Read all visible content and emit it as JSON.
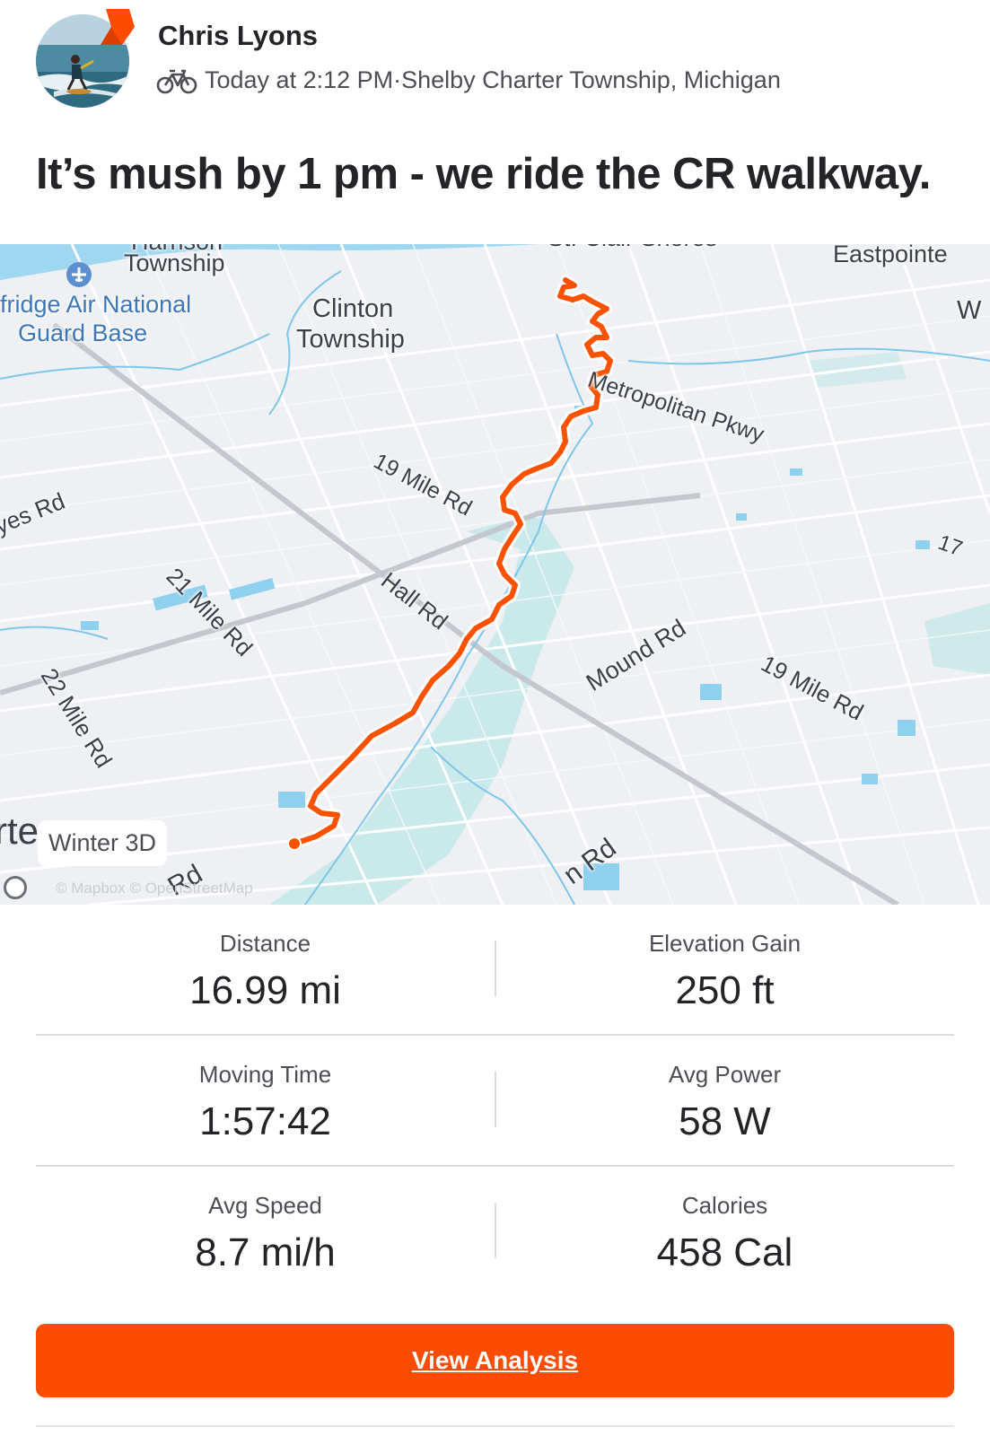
{
  "header": {
    "athlete_name": "Chris Lyons",
    "activity_icon": "bike-icon",
    "timestamp": "Today at 2:12 PM",
    "separator": " · ",
    "location": "Shelby Charter Township, Michigan"
  },
  "activity_title": "It’s mush by 1 pm - we ride the CR walkway.",
  "map": {
    "labels": {
      "township_top": "Township",
      "township_top_cut": "Harrison",
      "selfridge": "fridge Air National",
      "guard_base": "Guard Base",
      "clinton_1": "Clinton",
      "clinton_2": "Township",
      "st_clair": "St. Clair Shores",
      "eastpointe": "Eastpointe",
      "w_edge": "W",
      "metropolitan": "Metropolitan Pkwy",
      "nineteen_mile_1": "19 Mile Rd",
      "hayes": "yes Rd",
      "twentyone_mile": "21 Mile Rd",
      "hall": "Hall Rd",
      "twentytwo_mile": "22 Mile Rd",
      "mound": "Mound Rd",
      "nineteen_mile_2": "19 Mile Rd",
      "seventeen": "17",
      "van_dyke": "n Rd",
      "bottom_rd": "Rd",
      "edge_cut": "rte"
    },
    "style_chip": "Winter 3D",
    "attribution": "© Mapbox © OpenStreetMap",
    "colors": {
      "route": "#fc5200",
      "water": "#9fd6f0",
      "park": "#c9e9ea",
      "road": "#ffffff",
      "highway": "#c4c7cd"
    }
  },
  "stats": [
    {
      "label": "Distance",
      "value": "16.99 mi"
    },
    {
      "label": "Elevation Gain",
      "value": "250 ft"
    },
    {
      "label": "Moving Time",
      "value": "1:57:42"
    },
    {
      "label": "Avg Power",
      "value": "58 W"
    },
    {
      "label": "Avg Speed",
      "value": "8.7 mi/h"
    },
    {
      "label": "Calories",
      "value": "458 Cal"
    }
  ],
  "view_analysis_label": "View Analysis",
  "colors": {
    "accent": "#fc4c02",
    "text": "#242428",
    "muted": "#4d4d55"
  }
}
